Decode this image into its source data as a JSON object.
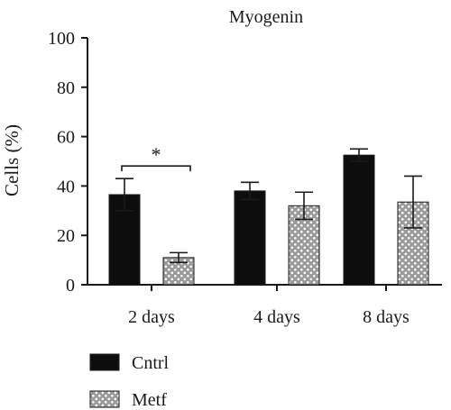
{
  "chart_data": {
    "type": "bar",
    "title": "Myogenin",
    "xlabel": "",
    "ylabel": "Cells (%)",
    "ylim": [
      0,
      100
    ],
    "yticks": [
      0,
      20,
      40,
      60,
      80,
      100
    ],
    "categories": [
      "2 days",
      "4 days",
      "8 days"
    ],
    "series": [
      {
        "name": "Cntrl",
        "values": [
          36.5,
          38,
          52.5
        ],
        "error": [
          6.5,
          3.5,
          2.5
        ],
        "color": "#0d0d0d",
        "pattern": "solid"
      },
      {
        "name": "Metf",
        "values": [
          11,
          32,
          33.5
        ],
        "error": [
          2,
          5.5,
          10.5
        ],
        "color": "#9a9a9a",
        "pattern": "white-dots"
      }
    ],
    "annotations": [
      {
        "text": "*",
        "category": "2 days",
        "type": "significance-bracket"
      }
    ],
    "legend_position": "bottom-left",
    "grid": false
  }
}
